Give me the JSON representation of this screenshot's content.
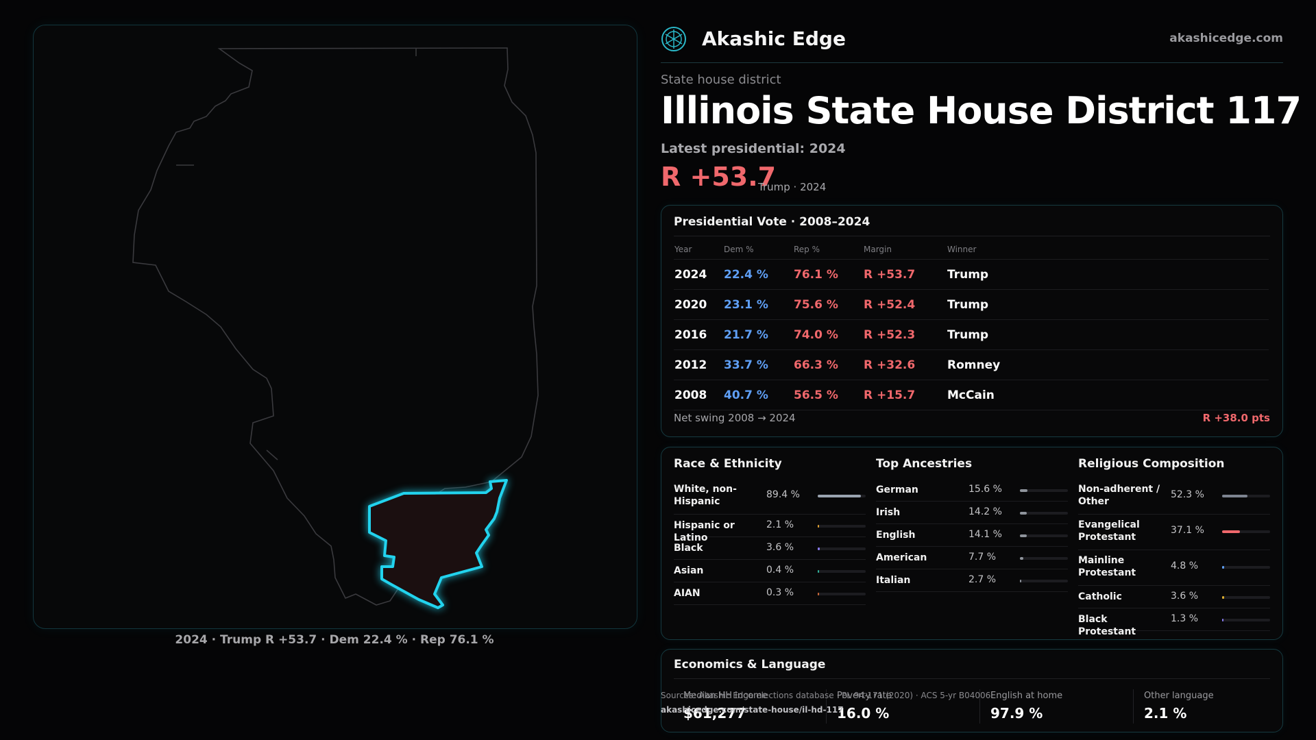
{
  "brand": {
    "name": "Akashic Edge",
    "url": "akashicedge.com",
    "logo_icon": "akashic-edge-logo-icon"
  },
  "header": {
    "kicker": "State house district",
    "title": "Illinois State House District 117",
    "latest_label": "Latest presidential: 2024",
    "margin": "R +53.7",
    "margin_sub": "Trump · 2024"
  },
  "map": {
    "caption": "2024 · Trump R +53.7 · Dem 22.4 % · Rep 76.1 %",
    "district_color": "#22d3ee"
  },
  "presidential": {
    "title": "Presidential Vote · 2008–2024",
    "columns": [
      "Year",
      "Dem %",
      "Rep %",
      "Margin",
      "Winner"
    ],
    "rows": [
      {
        "year": "2024",
        "dem": "22.4 %",
        "rep": "76.1 %",
        "margin": "R +53.7",
        "winner": "Trump"
      },
      {
        "year": "2020",
        "dem": "23.1 %",
        "rep": "75.6 %",
        "margin": "R +52.4",
        "winner": "Trump"
      },
      {
        "year": "2016",
        "dem": "21.7 %",
        "rep": "74.0 %",
        "margin": "R +52.3",
        "winner": "Trump"
      },
      {
        "year": "2012",
        "dem": "33.7 %",
        "rep": "66.3 %",
        "margin": "R +32.6",
        "winner": "Romney"
      },
      {
        "year": "2008",
        "dem": "40.7 %",
        "rep": "56.5 %",
        "margin": "R +15.7",
        "winner": "McCain"
      }
    ],
    "swing_label": "Net swing 2008 → 2024",
    "swing_value": "R +38.0 pts",
    "dem_color": "#5f9ff5",
    "rep_color": "#f0686c"
  },
  "race": {
    "title": "Race & Ethnicity",
    "rows": [
      {
        "label": "White, non-Hispanic",
        "value": "89.4 %",
        "pct": 89.4,
        "color": "#9aa3b0"
      },
      {
        "label": "Hispanic or Latino",
        "value": "2.1 %",
        "pct": 2.1,
        "color": "#e0a030"
      },
      {
        "label": "Black",
        "value": "3.6 %",
        "pct": 3.6,
        "color": "#8a7cf0"
      },
      {
        "label": "Asian",
        "value": "0.4 %",
        "pct": 0.4,
        "color": "#2fb39a"
      },
      {
        "label": "AIAN",
        "value": "0.3 %",
        "pct": 0.3,
        "color": "#d06a3a"
      }
    ]
  },
  "ancestry": {
    "title": "Top Ancestries",
    "rows": [
      {
        "label": "German",
        "value": "15.6 %",
        "pct": 15.6,
        "color": "#8f949c"
      },
      {
        "label": "Irish",
        "value": "14.2 %",
        "pct": 14.2,
        "color": "#8f949c"
      },
      {
        "label": "English",
        "value": "14.1 %",
        "pct": 14.1,
        "color": "#8f949c"
      },
      {
        "label": "American",
        "value": "7.7 %",
        "pct": 7.7,
        "color": "#8f949c"
      },
      {
        "label": "Italian",
        "value": "2.7 %",
        "pct": 2.7,
        "color": "#8f949c"
      }
    ]
  },
  "religion": {
    "title": "Religious Composition",
    "rows": [
      {
        "label": "Non-adherent / Other",
        "value": "52.3 %",
        "pct": 52.3,
        "color": "#7d8490"
      },
      {
        "label": "Evangelical Protestant",
        "value": "37.1 %",
        "pct": 37.1,
        "color": "#f0686c"
      },
      {
        "label": "Mainline Protestant",
        "value": "4.8 %",
        "pct": 4.8,
        "color": "#5f9ff5"
      },
      {
        "label": "Catholic",
        "value": "3.6 %",
        "pct": 3.6,
        "color": "#e0b030"
      },
      {
        "label": "Black Protestant",
        "value": "1.3 %",
        "pct": 1.3,
        "color": "#8a7cf0"
      }
    ]
  },
  "economics": {
    "title": "Economics & Language",
    "items": [
      {
        "label": "Median HH income",
        "value": "$61,277"
      },
      {
        "label": "Poverty rate",
        "value": "16.0 %"
      },
      {
        "label": "English at home",
        "value": "97.9 %"
      },
      {
        "label": "Other language",
        "value": "2.1 %"
      }
    ]
  },
  "source": {
    "text": "Sources: Akashic Edge elections database · PL 94-171 (2020) · ACS 5-yr B04006",
    "url": "akashicedge.com/state-house/il-hd-117"
  }
}
